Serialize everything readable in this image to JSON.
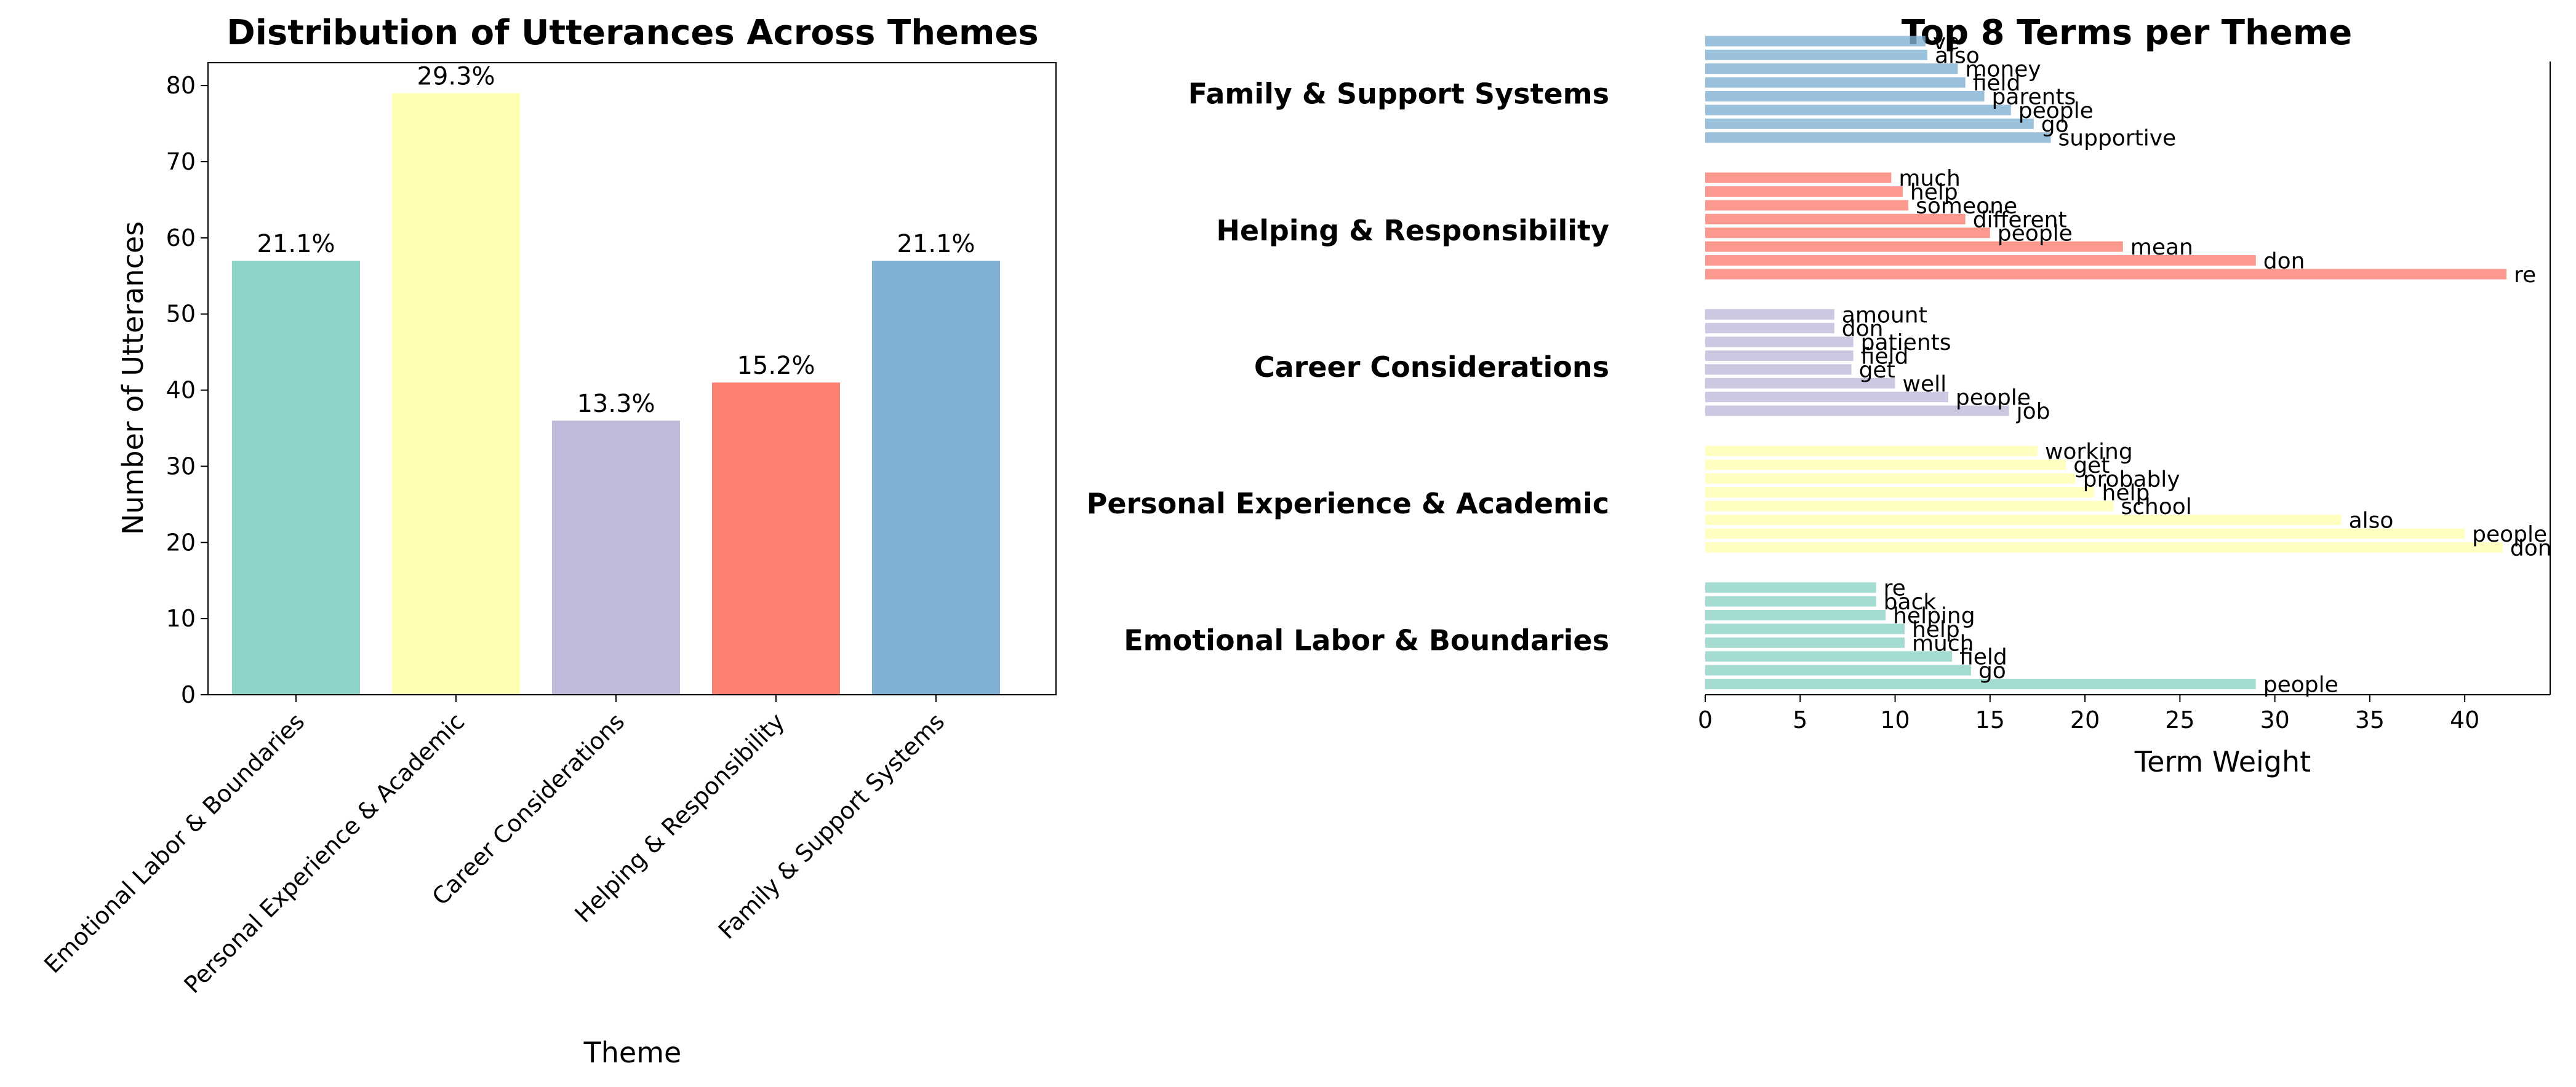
{
  "chart_data": [
    {
      "type": "bar",
      "title": "Distribution of Utterances Across Themes",
      "xlabel": "Theme",
      "ylabel": "Number of Utterances",
      "ylim": [
        0,
        83
      ],
      "yticks": [
        0,
        10,
        20,
        30,
        40,
        50,
        60,
        70,
        80
      ],
      "grid": false,
      "categories": [
        "Emotional Labor & Boundaries",
        "Personal Experience & Academic",
        "Career Considerations",
        "Helping & Responsibility",
        "Family & Support Systems"
      ],
      "values": [
        57,
        79,
        36,
        41,
        57
      ],
      "data_labels": [
        "21.1%",
        "29.3%",
        "13.3%",
        "15.2%",
        "21.1%"
      ],
      "colors": [
        "#8dd3c7",
        "#ffffb3",
        "#bebada",
        "#fb8072",
        "#80b1d3"
      ]
    },
    {
      "type": "bar",
      "orientation": "horizontal",
      "title": "Top 8 Terms per Theme",
      "xlabel": "Term Weight",
      "ylabel": "",
      "xlim": [
        0,
        44.5
      ],
      "xticks": [
        0,
        5,
        10,
        15,
        20,
        25,
        30,
        35,
        40
      ],
      "grid": false,
      "groups": [
        {
          "theme": "Emotional Labor & Boundaries",
          "color": "#8dd3c7",
          "terms": [
            "people",
            "go",
            "field",
            "much",
            "help",
            "helping",
            "back",
            "re"
          ],
          "values": [
            29,
            14,
            13,
            10.5,
            10.5,
            9.5,
            9,
            9
          ]
        },
        {
          "theme": "Personal Experience & Academic",
          "color": "#ffffb3",
          "terms": [
            "don",
            "people",
            "also",
            "school",
            "help",
            "probably",
            "get",
            "working"
          ],
          "values": [
            42,
            40,
            33.5,
            21.5,
            20.5,
            19.5,
            19,
            17.5
          ]
        },
        {
          "theme": "Career Considerations",
          "color": "#bebada",
          "terms": [
            "job",
            "people",
            "well",
            "get",
            "field",
            "patients",
            "don",
            "amount"
          ],
          "values": [
            16,
            12.8,
            10,
            7.7,
            7.8,
            7.8,
            6.8,
            6.8
          ]
        },
        {
          "theme": "Helping & Responsibility",
          "color": "#fb8072",
          "terms": [
            "re",
            "don",
            "mean",
            "people",
            "different",
            "someone",
            "help",
            "much"
          ],
          "values": [
            42.2,
            29,
            22,
            15,
            13.7,
            10.7,
            10.4,
            9.8
          ]
        },
        {
          "theme": "Family & Support Systems",
          "color": "#80b1d3",
          "terms": [
            "supportive",
            "go",
            "people",
            "parents",
            "field",
            "money",
            "also",
            "ve"
          ],
          "values": [
            18.2,
            17.3,
            16.1,
            14.7,
            13.7,
            13.3,
            11.7,
            11.6
          ]
        }
      ]
    }
  ]
}
